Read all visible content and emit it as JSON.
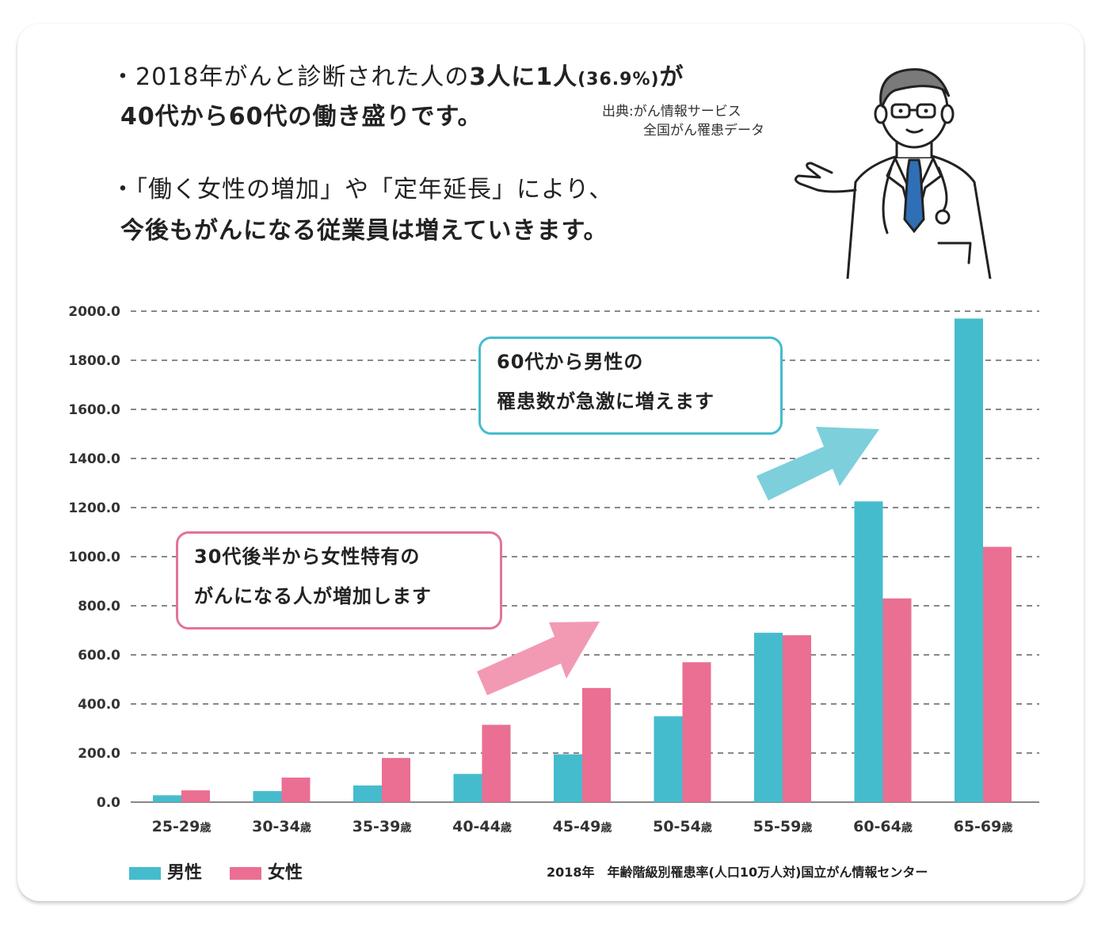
{
  "header": {
    "line1_prefix": "・2018年がんと診断された人の",
    "line1_emph": "3人に1人",
    "line1_pct": "(36.9%)",
    "line1_suffix": "が",
    "line2": "40代から60代の働き盛りです。",
    "source_line1": "出典:がん情報サービス",
    "source_line2": "全国がん罹患データ",
    "line3": "・「働く女性の増加」や「定年延長」により、",
    "line4": "今後もがんになる従業員は増えていきます。"
  },
  "callouts": {
    "male_line1": "60代から男性の",
    "male_line2": "罹患数が急激に増えます",
    "female_line1": "30代後半から女性特有の",
    "female_line2": "がんになる人が増加します"
  },
  "colors": {
    "male": "#45bccd",
    "female": "#ea6f92",
    "male_arrow": "#7dcfdc",
    "female_arrow": "#f29ab3",
    "male_box_border": "#45bccd",
    "female_box_border": "#e3739a"
  },
  "chart_data": {
    "type": "bar",
    "categories": [
      "25-29歳",
      "30-34歳",
      "35-39歳",
      "40-44歳",
      "45-49歳",
      "50-54歳",
      "55-59歳",
      "60-64歳",
      "65-69歳"
    ],
    "series": [
      {
        "name": "男性",
        "values": [
          28,
          45,
          68,
          115,
          195,
          350,
          690,
          1225,
          1970
        ]
      },
      {
        "name": "女性",
        "values": [
          48,
          100,
          180,
          315,
          465,
          570,
          680,
          830,
          1040
        ]
      }
    ],
    "yticks": [
      "0.0",
      "200.0",
      "400.0",
      "600.0",
      "800.0",
      "1000.0",
      "1200.0",
      "1400.0",
      "1600.0",
      "1800.0",
      "2000.0"
    ],
    "ylim": [
      0,
      2000
    ],
    "grid": true,
    "legend": "bottom-left"
  },
  "footnote": "2018年　年齢階級別罹患率(人口10万人対)国立がん情報センター"
}
